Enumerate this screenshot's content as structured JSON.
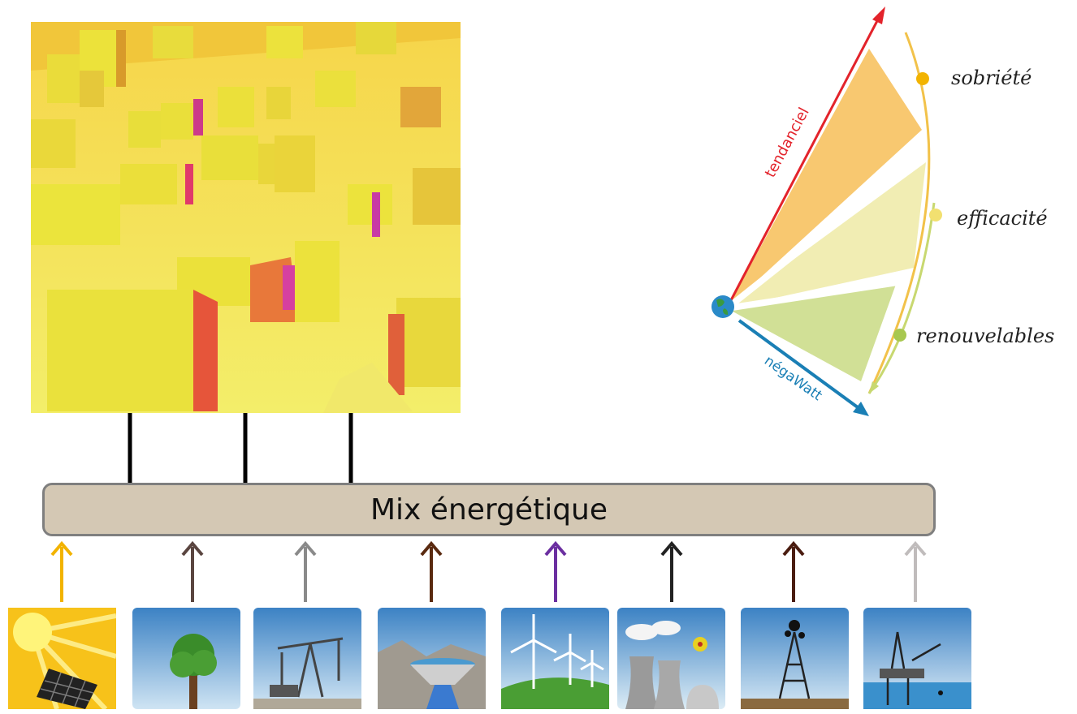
{
  "mix": {
    "label": "Mix énergétique"
  },
  "scenario": {
    "tendanciel": "tendanciel",
    "negawatt": "négaWatt",
    "sobriete": "sobriété",
    "efficacite": "efficacité",
    "renouvelables": "renouvelables"
  },
  "sources": [
    {
      "icon": "solar-panel-icon",
      "arrow_color": "#f2b300"
    },
    {
      "icon": "biomass-tree-icon",
      "arrow_color": "#5a4540"
    },
    {
      "icon": "oil-pump-icon",
      "arrow_color": "#8a8a8a"
    },
    {
      "icon": "hydro-dam-icon",
      "arrow_color": "#5a2a10"
    },
    {
      "icon": "wind-turbine-icon",
      "arrow_color": "#6b2fa0"
    },
    {
      "icon": "nuclear-plant-icon",
      "arrow_color": "#222222"
    },
    {
      "icon": "oil-well-icon",
      "arrow_color": "#4a1c10"
    },
    {
      "icon": "offshore-platform-icon",
      "arrow_color": "#c0bcbc"
    }
  ],
  "colors": {
    "box_fill": "#d4c8b4",
    "box_border": "#7f7f7f",
    "tendanciel": "#e3232b",
    "negawatt": "#1a7fb5",
    "sobriete": "#f5b640",
    "efficacite": "#eee8a0",
    "renouvelables": "#c5d87c"
  }
}
